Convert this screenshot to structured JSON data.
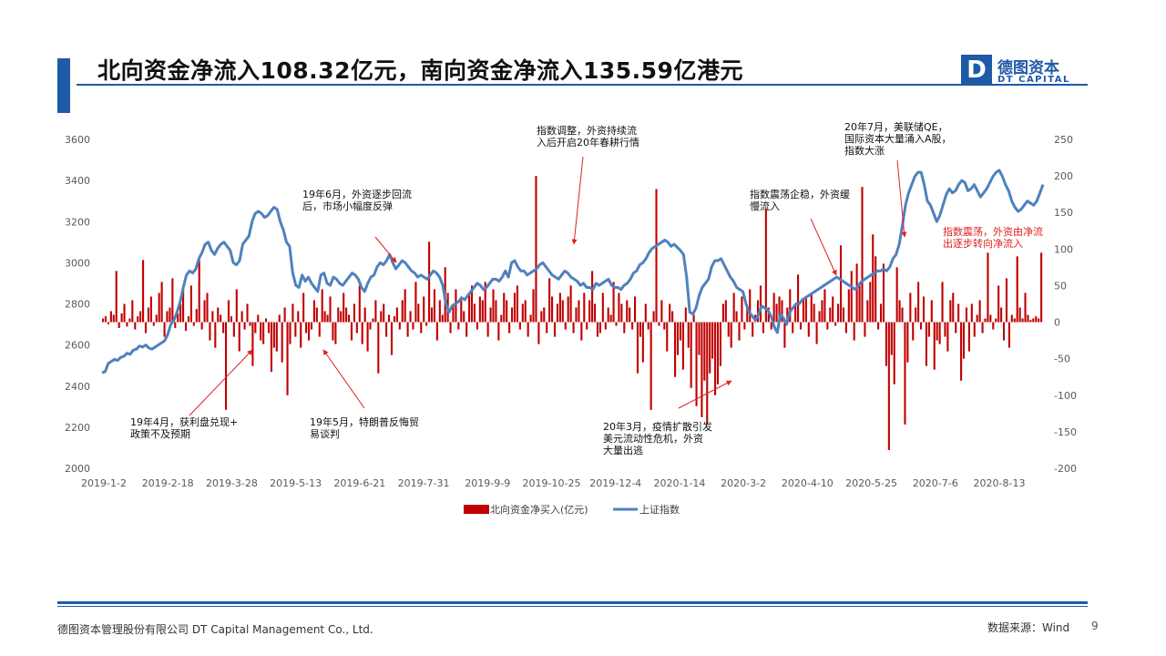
{
  "header": {
    "title": "北向资金净流入108.32亿元，南向资金净流入135.59亿港元",
    "logo_mark": "D",
    "logo_cn": "德图资本",
    "logo_en": "DT CAPITAL"
  },
  "footer": {
    "company": "德图资本管理股份有限公司  DT Capital  Management  Co., Ltd.",
    "source": "数据来源：Wind",
    "page": "9"
  },
  "colors": {
    "bar": "#c00000",
    "line": "#4f81bd",
    "accent": "#1f5aa6",
    "annotation_red": "#e02020"
  },
  "chart_data": {
    "type": "bar+line",
    "title": "",
    "left_axis": {
      "ylim": [
        2000,
        3600
      ],
      "ticks": [
        "2000",
        "2200",
        "2400",
        "2600",
        "2800",
        "3000",
        "3200",
        "3400",
        "3600"
      ]
    },
    "right_axis": {
      "ylim": [
        -200,
        250
      ],
      "ticks": [
        "-200",
        "-150",
        "-100",
        "-50",
        "0",
        "50",
        "100",
        "150",
        "200",
        "250"
      ]
    },
    "x_tick_labels": [
      "2019-1-2",
      "2019-2-18",
      "2019-3-28",
      "2019-5-13",
      "2019-6-21",
      "2019-7-31",
      "2019-9-9",
      "2019-10-25",
      "2019-12-4",
      "2020-1-14",
      "2020-3-2",
      "2020-4-10",
      "2020-5-25",
      "2020-7-6",
      "2020-8-13"
    ],
    "grid": false,
    "legend_position": "bottom",
    "series": [
      {
        "name": "北向资金净买入(亿元)",
        "type": "bar",
        "axis": "right",
        "values": [
          5,
          8,
          -3,
          15,
          10,
          70,
          -8,
          12,
          25,
          -6,
          5,
          30,
          -10,
          8,
          15,
          85,
          -15,
          20,
          35,
          -5,
          10,
          40,
          55,
          -20,
          15,
          20,
          60,
          -8,
          12,
          25,
          45,
          -12,
          8,
          50,
          -5,
          18,
          85,
          -10,
          30,
          40,
          -25,
          15,
          -35,
          20,
          10,
          -15,
          -120,
          30,
          8,
          -20,
          45,
          -40,
          15,
          -10,
          25,
          -5,
          -60,
          -15,
          10,
          -25,
          -30,
          5,
          -15,
          -68,
          -35,
          -40,
          10,
          -55,
          20,
          -100,
          -30,
          25,
          -20,
          15,
          -35,
          40,
          -15,
          -25,
          -10,
          30,
          20,
          -20,
          45,
          15,
          10,
          35,
          -25,
          -30,
          20,
          15,
          40,
          20,
          10,
          -25,
          25,
          -15,
          50,
          -30,
          20,
          -40,
          -10,
          5,
          30,
          -70,
          15,
          25,
          -20,
          10,
          -45,
          8,
          20,
          -10,
          30,
          45,
          -20,
          15,
          -10,
          55,
          25,
          -15,
          35,
          -5,
          110,
          20,
          45,
          -25,
          30,
          10,
          75,
          40,
          -15,
          25,
          45,
          -10,
          30,
          15,
          -20,
          40,
          50,
          25,
          -10,
          35,
          30,
          55,
          -20,
          20,
          45,
          30,
          -25,
          10,
          40,
          30,
          -15,
          20,
          40,
          50,
          -10,
          25,
          30,
          -20,
          10,
          45,
          200,
          -30,
          15,
          20,
          -15,
          60,
          35,
          -20,
          25,
          40,
          30,
          -10,
          35,
          50,
          -15,
          20,
          30,
          -25,
          40,
          -10,
          30,
          70,
          25,
          -20,
          -15,
          40,
          -10,
          20,
          10,
          55,
          -5,
          40,
          25,
          -15,
          30,
          20,
          -10,
          35,
          -70,
          -20,
          -55,
          25,
          -10,
          -120,
          15,
          182,
          -5,
          30,
          -10,
          -40,
          25,
          15,
          -75,
          -45,
          -25,
          -65,
          20,
          -35,
          -90,
          10,
          -115,
          -45,
          -130,
          -80,
          -140,
          -70,
          -50,
          -100,
          -85,
          -60,
          25,
          30,
          -20,
          -35,
          40,
          15,
          -25,
          35,
          -10,
          20,
          45,
          -20,
          10,
          30,
          50,
          -15,
          155,
          20,
          -10,
          40,
          25,
          35,
          30,
          -35,
          20,
          45,
          -15,
          25,
          65,
          -10,
          30,
          35,
          -20,
          40,
          25,
          -30,
          15,
          30,
          45,
          -10,
          20,
          35,
          -5,
          25,
          105,
          20,
          -15,
          45,
          70,
          -25,
          80,
          50,
          185,
          -20,
          30,
          55,
          120,
          90,
          -10,
          25,
          80,
          -60,
          -175,
          -45,
          -85,
          75,
          30,
          20,
          -140,
          -55,
          40,
          -25,
          20,
          55,
          -10,
          35,
          -60,
          -20,
          30,
          -65,
          -25,
          -30,
          55,
          -20,
          -40,
          30,
          40,
          -15,
          25,
          -80,
          -50,
          20,
          -40,
          25,
          -20,
          10,
          30,
          -15,
          5,
          95,
          10,
          -10,
          5,
          50,
          20,
          -25,
          60,
          -35,
          10,
          5,
          90,
          20,
          5,
          40,
          10,
          3,
          5,
          8,
          5,
          95
        ]
      },
      {
        "name": "上证指数",
        "type": "line",
        "axis": "left",
        "x_range": [
          "2019-1-2",
          "2020-9-15"
        ],
        "values": [
          2465,
          2470,
          2510,
          2520,
          2530,
          2525,
          2540,
          2545,
          2560,
          2555,
          2575,
          2580,
          2595,
          2590,
          2600,
          2585,
          2580,
          2590,
          2600,
          2610,
          2620,
          2650,
          2700,
          2720,
          2760,
          2810,
          2880,
          2940,
          2960,
          2950,
          2970,
          3020,
          3050,
          3090,
          3100,
          3060,
          3040,
          3070,
          3090,
          3100,
          3080,
          3060,
          3000,
          2990,
          3010,
          3090,
          3110,
          3130,
          3200,
          3240,
          3250,
          3240,
          3220,
          3230,
          3250,
          3270,
          3260,
          3200,
          3160,
          3100,
          3080,
          2950,
          2890,
          2880,
          2940,
          2910,
          2930,
          2900,
          2880,
          2860,
          2940,
          2950,
          2900,
          2890,
          2930,
          2920,
          2900,
          2890,
          2910,
          2930,
          2950,
          2940,
          2920,
          2880,
          2860,
          2900,
          2930,
          2940,
          2980,
          3000,
          2990,
          3010,
          3040,
          3000,
          2970,
          2990,
          3010,
          3000,
          2980,
          2960,
          2950,
          2930,
          2940,
          2930,
          2920,
          2940,
          2960,
          2950,
          2930,
          2890,
          2800,
          2760,
          2790,
          2800,
          2810,
          2830,
          2820,
          2840,
          2860,
          2880,
          2900,
          2890,
          2870,
          2880,
          2900,
          2920,
          2920,
          2910,
          2930,
          2960,
          2930,
          3000,
          3010,
          2980,
          2960,
          2960,
          2940,
          2950,
          2960,
          2970,
          2990,
          3000,
          2980,
          2960,
          2940,
          2930,
          2920,
          2940,
          2960,
          2950,
          2930,
          2920,
          2910,
          2890,
          2900,
          2880,
          2880,
          2870,
          2900,
          2890,
          2900,
          2910,
          2920,
          2890,
          2880,
          2880,
          2870,
          2890,
          2900,
          2920,
          2950,
          2960,
          2990,
          3000,
          3020,
          3050,
          3070,
          3080,
          3090,
          3100,
          3110,
          3100,
          3080,
          3090,
          3075,
          3060,
          3040,
          2930,
          2760,
          2750,
          2780,
          2840,
          2880,
          2900,
          2920,
          2980,
          3010,
          3010,
          3020,
          2990,
          2960,
          2930,
          2910,
          2880,
          2870,
          2860,
          2800,
          2760,
          2740,
          2720,
          2750,
          2790,
          2780,
          2770,
          2740,
          2690,
          2660,
          2750,
          2730,
          2700,
          2760,
          2780,
          2800,
          2800,
          2820,
          2830,
          2840,
          2850,
          2860,
          2870,
          2880,
          2890,
          2900,
          2910,
          2920,
          2930,
          2920,
          2910,
          2900,
          2890,
          2880,
          2870,
          2890,
          2910,
          2920,
          2930,
          2940,
          2950,
          2960,
          2960,
          2970,
          2960,
          2980,
          3020,
          3040,
          3090,
          3180,
          3280,
          3340,
          3380,
          3420,
          3440,
          3440,
          3380,
          3300,
          3280,
          3240,
          3200,
          3230,
          3280,
          3330,
          3360,
          3340,
          3350,
          3380,
          3400,
          3390,
          3350,
          3360,
          3380,
          3350,
          3320,
          3340,
          3360,
          3390,
          3420,
          3440,
          3450,
          3420,
          3380,
          3350,
          3300,
          3270,
          3250,
          3260,
          3280,
          3300,
          3290,
          3280,
          3300,
          3340,
          3380
        ]
      }
    ],
    "annotations": [
      {
        "id": "a1",
        "text": [
          "19年4月，获利盘兑现+",
          "政策不及预期"
        ],
        "color": "#111111"
      },
      {
        "id": "a2",
        "text": [
          "19年5月，特朗普反悔贸",
          "易谈判"
        ],
        "color": "#111111"
      },
      {
        "id": "a3",
        "text": [
          "19年6月，外资逐步回流",
          "后，市场小幅度反弹"
        ],
        "color": "#111111"
      },
      {
        "id": "a4",
        "text": [
          "指数调整，外资持续流",
          "入后开启20年春耕行情"
        ],
        "color": "#111111"
      },
      {
        "id": "a5",
        "text": [
          "20年3月，疫情扩散引发",
          "美元流动性危机，外资",
          "大量出逃"
        ],
        "color": "#111111"
      },
      {
        "id": "a6",
        "text": [
          "指数震荡企稳，外资缓",
          "慢流入"
        ],
        "color": "#111111"
      },
      {
        "id": "a7",
        "text": [
          "20年7月，美联储QE，",
          "国际资本大量涌入A股，",
          "指数大涨"
        ],
        "color": "#111111"
      },
      {
        "id": "a8",
        "text": [
          "指数震荡，外资由净流",
          "出逐步转向净流入"
        ],
        "color": "#e02020"
      }
    ]
  }
}
